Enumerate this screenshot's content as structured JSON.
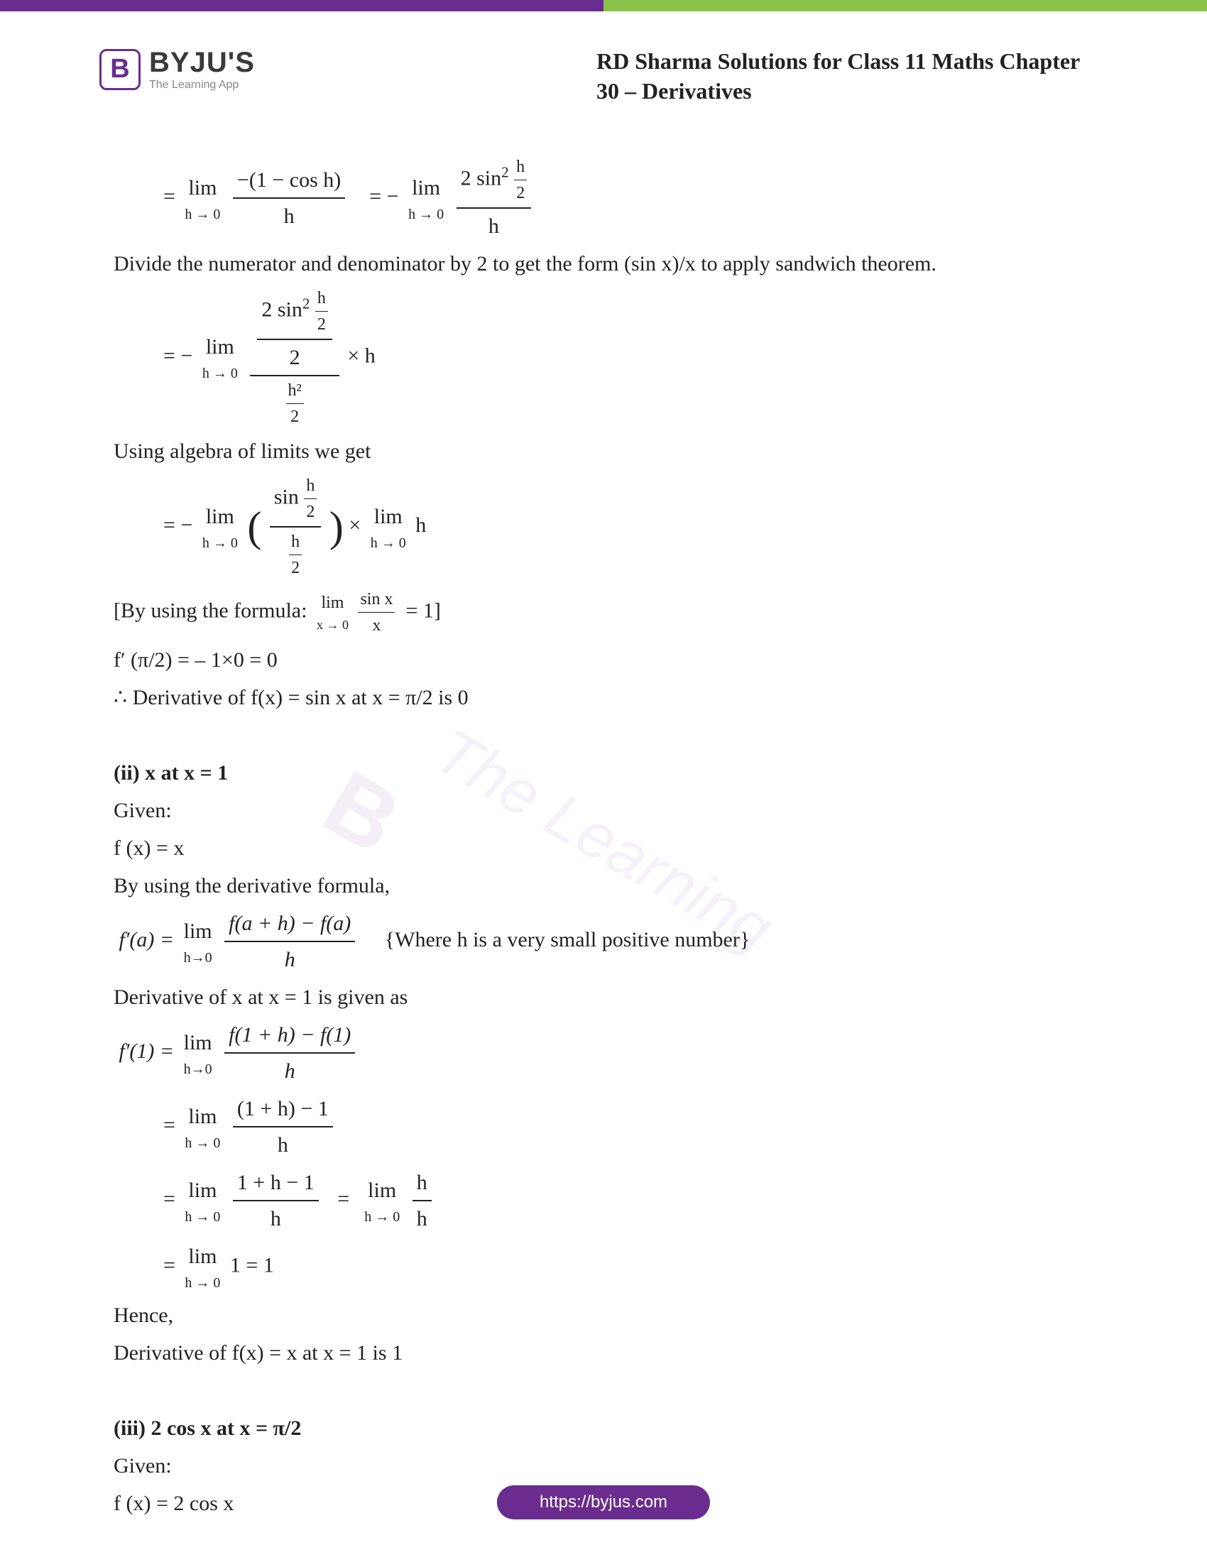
{
  "colors": {
    "purple": "#6b2c8f",
    "green": "#8bc34a",
    "text": "#222222",
    "watermark": "rgba(180, 140, 200, 0.12)"
  },
  "header": {
    "logo_letter": "B",
    "brand": "BYJU'S",
    "tagline": "The Learning App",
    "title": "RD Sharma Solutions for Class 11 Maths Chapter 30 – Derivatives"
  },
  "watermark": {
    "text1": "The Learning",
    "text2": "B"
  },
  "content": {
    "line1_eq": "=",
    "line1_lim": "lim",
    "line1_limsub": "h → 0",
    "line1_num": "−(1 − cos h)",
    "line1_den": "h",
    "line1_eq2": "=  −",
    "line1_num2_a": "2 sin",
    "line1_num2_sup": "2",
    "line1_hfrac_num": "h",
    "line1_hfrac_den": "2",
    "line1_den2": "h",
    "line2": "Divide the numerator and denominator by 2 to get the form (sin x)/x to apply sandwich theorem.",
    "line3_eq": "=  −",
    "line3_times": "× h",
    "line3_hsq": "h²",
    "line3_two": "2",
    "line4": "Using algebra of limits we get",
    "line5_eq": "=  −",
    "line5_sin": "sin",
    "line5_times": "×",
    "line5_h": "h",
    "line6_a": "[By using the formula:",
    "line6_lim": "lim",
    "line6_sub": "x → 0",
    "line6_frac_num": "sin x",
    "line6_frac_den": "x",
    "line6_eq": "=  1",
    "line6_b": "]",
    "line7": "f′ (π/2) = – 1×0 = 0",
    "line8": "∴ Derivative of f(x) = sin x at x = π/2 is 0",
    "part2_title": "(ii) x at x = 1",
    "part2_given": "Given:",
    "part2_fx": "f (x) = x",
    "part2_by": "By using the derivative formula,",
    "part2_fa_lhs": "f′(a)  =",
    "part2_fa_num": "f(a + h)  −  f(a)",
    "part2_fa_den": "h",
    "part2_fa_note": "{Where h is a very small positive number}",
    "part2_deriv": "Derivative of x at x = 1 is given as",
    "part2_f1_lhs": "f′(1)  =",
    "part2_f1_num": "f(1 + h)  −  f(1)",
    "part2_f1_den": "h",
    "part2_l2_num": "(1  +  h) − 1",
    "part2_l2_den": "h",
    "part2_l3_num": "1  +  h − 1",
    "part2_l3_den": "h",
    "part2_l3b_num": "h",
    "part2_l3b_den": "h",
    "part2_l4": "1  =  1",
    "part2_hence": "Hence,",
    "part2_result": "Derivative of f(x) = x at x = 1 is 1",
    "part3_title": "(iii) 2 cos x at x = π/2",
    "part3_given": "Given:",
    "part3_fx": "f (x) = 2 cos x"
  },
  "footer": {
    "url": "https://byjus.com"
  }
}
